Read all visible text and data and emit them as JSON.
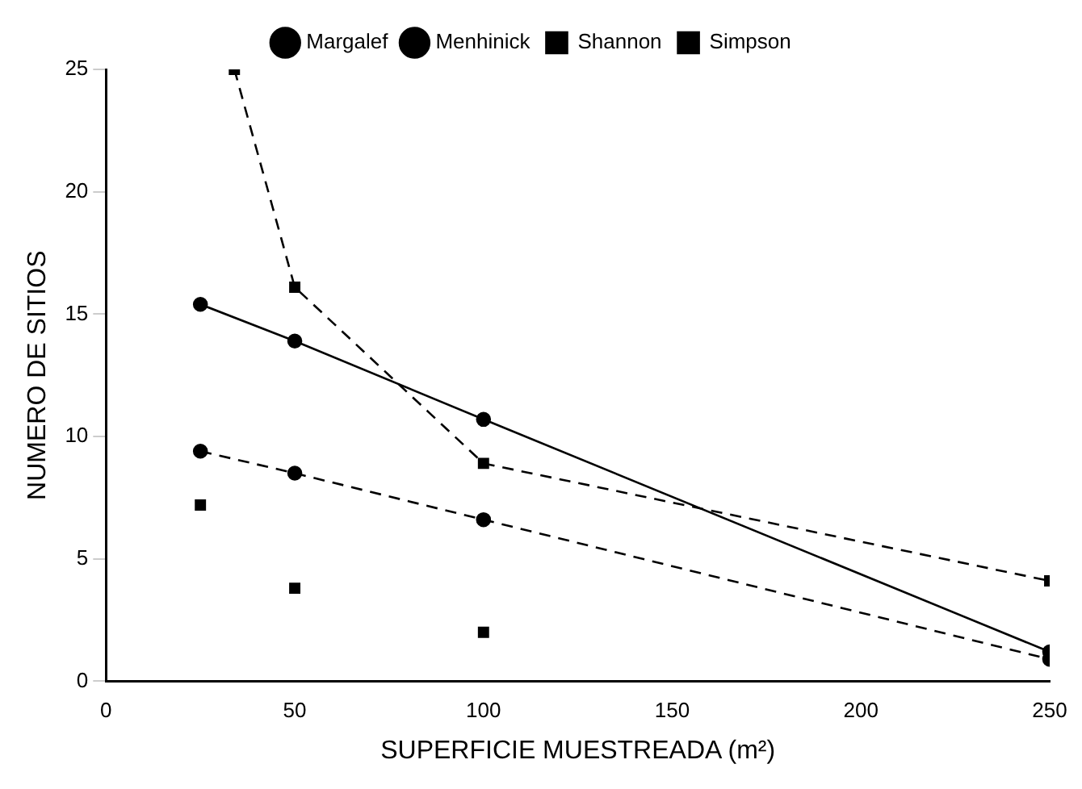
{
  "chart_data": {
    "type": "line",
    "xlabel": "SUPERFICIE MUESTREADA (m²)",
    "ylabel": "NUMERO DE SITIOS",
    "xlim": [
      0,
      250
    ],
    "xticks": [
      0,
      50,
      100,
      150,
      200,
      250
    ],
    "ylim": [
      0,
      25
    ],
    "yticks": [
      0,
      5,
      10,
      15,
      20,
      25
    ],
    "grid": false,
    "legend": "top",
    "series": [
      {
        "name": "Margalef",
        "color": "#000000",
        "x": [
          25,
          50,
          100,
          250
        ],
        "values": [
          15.4,
          13.9,
          10.7,
          1.2
        ],
        "marker": "circle",
        "line_style": "solid"
      },
      {
        "name": "Menhinick",
        "color": "#000000",
        "x": [
          25,
          50,
          100,
          250
        ],
        "values": [
          9.4,
          8.5,
          6.6,
          0.9
        ],
        "marker": "circle",
        "line_style": "dashed"
      },
      {
        "name": "Shannon",
        "type": "scatter",
        "color": "#000000",
        "x": [
          25,
          50,
          100
        ],
        "values": [
          7.2,
          3.8,
          2.0
        ],
        "marker": "square"
      },
      {
        "name": "Simpson",
        "color": "#000000",
        "x": [
          34,
          50,
          100,
          250
        ],
        "values": [
          25,
          16.1,
          8.9,
          4.1
        ],
        "marker": "square",
        "line_style": "dashed"
      }
    ]
  }
}
